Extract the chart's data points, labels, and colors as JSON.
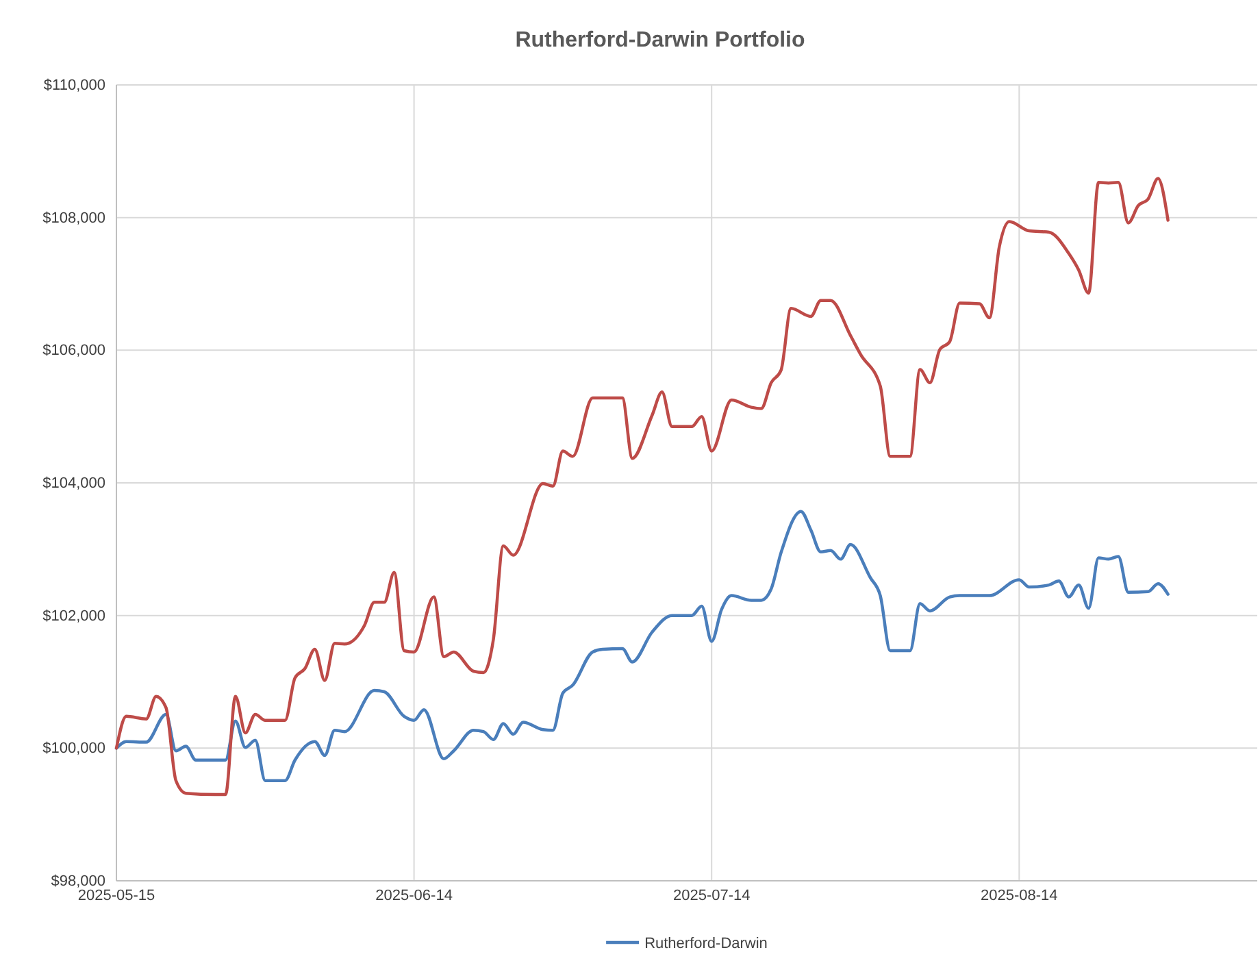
{
  "chart_data": {
    "type": "line",
    "title": "Rutherford-Darwin Portfolio",
    "xlim": [
      "2025-05-15",
      "2025-09-07"
    ],
    "xticks": [
      "2025-05-15",
      "2025-06-14",
      "2025-07-14",
      "2025-08-14"
    ],
    "ylim": [
      98000,
      110000
    ],
    "yticks": [
      {
        "value": 98000,
        "label": "$98,000"
      },
      {
        "value": 100000,
        "label": "$100,000"
      },
      {
        "value": 102000,
        "label": "$102,000"
      },
      {
        "value": 104000,
        "label": "$104,000"
      },
      {
        "value": 106000,
        "label": "$106,000"
      },
      {
        "value": 108000,
        "label": "$108,000"
      },
      {
        "value": 110000,
        "label": "$110,000"
      }
    ],
    "grid": true,
    "legend": "bottom",
    "marker": "none",
    "line_style": "solid",
    "series": [
      {
        "name": "Rutherford-Darwin",
        "color": "#4a7ebb",
        "x": [
          "2025-05-15",
          "2025-05-16",
          "2025-05-18",
          "2025-05-20",
          "2025-05-21",
          "2025-05-22",
          "2025-05-23",
          "2025-05-25",
          "2025-05-26",
          "2025-05-27",
          "2025-05-28",
          "2025-05-29",
          "2025-05-30",
          "2025-06-01",
          "2025-06-02",
          "2025-06-04",
          "2025-06-05",
          "2025-06-06",
          "2025-06-07",
          "2025-06-10",
          "2025-06-11",
          "2025-06-13",
          "2025-06-14",
          "2025-06-15",
          "2025-06-17",
          "2025-06-18",
          "2025-06-20",
          "2025-06-21",
          "2025-06-22",
          "2025-06-23",
          "2025-06-24",
          "2025-06-25",
          "2025-06-27",
          "2025-06-28",
          "2025-06-29",
          "2025-06-30",
          "2025-07-02",
          "2025-07-03",
          "2025-07-05",
          "2025-07-06",
          "2025-07-08",
          "2025-07-10",
          "2025-07-12",
          "2025-07-13",
          "2025-07-14",
          "2025-07-15",
          "2025-07-16",
          "2025-07-18",
          "2025-07-19",
          "2025-07-20",
          "2025-07-21",
          "2025-07-23",
          "2025-07-24",
          "2025-07-25",
          "2025-07-26",
          "2025-07-27",
          "2025-07-28",
          "2025-07-30",
          "2025-07-31",
          "2025-08-01",
          "2025-08-03",
          "2025-08-04",
          "2025-08-05",
          "2025-08-07",
          "2025-08-08",
          "2025-08-11",
          "2025-08-14",
          "2025-08-15",
          "2025-08-17",
          "2025-08-18",
          "2025-08-19",
          "2025-08-20",
          "2025-08-21",
          "2025-08-22",
          "2025-08-23",
          "2025-08-24",
          "2025-08-25",
          "2025-08-27",
          "2025-08-28",
          "2025-08-29"
        ],
        "values": [
          100000,
          100100,
          100090,
          100510,
          99960,
          100030,
          99820,
          99820,
          99820,
          100410,
          100010,
          100120,
          99510,
          99510,
          99820,
          100100,
          99890,
          100270,
          100250,
          100870,
          100850,
          100480,
          100420,
          100580,
          99840,
          99960,
          100270,
          100250,
          100130,
          100370,
          100210,
          100390,
          100280,
          100270,
          100830,
          100950,
          101450,
          101490,
          101500,
          101300,
          101750,
          102000,
          102000,
          102140,
          101610,
          102090,
          102300,
          102230,
          102230,
          102400,
          102950,
          103570,
          103290,
          102960,
          102980,
          102850,
          103070,
          102570,
          102300,
          101470,
          101470,
          102180,
          102070,
          102280,
          102300,
          102300,
          102540,
          102430,
          102460,
          102520,
          102280,
          102460,
          102110,
          102870,
          102850,
          102890,
          102350,
          102360,
          102480,
          102320
        ]
      },
      {
        "color": "#be4b48",
        "x": [
          "2025-05-15",
          "2025-05-16",
          "2025-05-18",
          "2025-05-19",
          "2025-05-20",
          "2025-05-21",
          "2025-05-22",
          "2025-05-25",
          "2025-05-26",
          "2025-05-27",
          "2025-05-28",
          "2025-05-29",
          "2025-05-30",
          "2025-06-01",
          "2025-06-02",
          "2025-06-03",
          "2025-06-04",
          "2025-06-05",
          "2025-06-06",
          "2025-06-07",
          "2025-06-09",
          "2025-06-10",
          "2025-06-11",
          "2025-06-12",
          "2025-06-13",
          "2025-06-14",
          "2025-06-16",
          "2025-06-17",
          "2025-06-18",
          "2025-06-20",
          "2025-06-21",
          "2025-06-22",
          "2025-06-23",
          "2025-06-24",
          "2025-06-27",
          "2025-06-28",
          "2025-06-29",
          "2025-06-30",
          "2025-07-02",
          "2025-07-05",
          "2025-07-06",
          "2025-07-08",
          "2025-07-09",
          "2025-07-10",
          "2025-07-12",
          "2025-07-13",
          "2025-07-14",
          "2025-07-16",
          "2025-07-18",
          "2025-07-19",
          "2025-07-20",
          "2025-07-21",
          "2025-07-22",
          "2025-07-24",
          "2025-07-25",
          "2025-07-26",
          "2025-07-28",
          "2025-07-29",
          "2025-07-31",
          "2025-08-01",
          "2025-08-03",
          "2025-08-04",
          "2025-08-05",
          "2025-08-06",
          "2025-08-07",
          "2025-08-08",
          "2025-08-10",
          "2025-08-11",
          "2025-08-12",
          "2025-08-13",
          "2025-08-15",
          "2025-08-17",
          "2025-08-19",
          "2025-08-20",
          "2025-08-21",
          "2025-08-22",
          "2025-08-23",
          "2025-08-24",
          "2025-08-25",
          "2025-08-26",
          "2025-08-27",
          "2025-08-28",
          "2025-08-29"
        ],
        "values": [
          100000,
          100480,
          100440,
          100780,
          100610,
          99510,
          99320,
          99300,
          99300,
          100780,
          100230,
          100510,
          100420,
          100420,
          101060,
          101200,
          101490,
          101020,
          101580,
          101570,
          101850,
          102200,
          102200,
          102650,
          101470,
          101450,
          102280,
          101380,
          101450,
          101160,
          101140,
          101640,
          103050,
          102910,
          103990,
          103950,
          104480,
          104400,
          105280,
          105280,
          104370,
          105020,
          105370,
          104850,
          104850,
          105000,
          104480,
          105250,
          105140,
          105120,
          105510,
          105700,
          106630,
          106510,
          106750,
          106750,
          106220,
          105940,
          105460,
          104400,
          104400,
          105710,
          105510,
          106010,
          106130,
          106710,
          106700,
          106490,
          107560,
          107940,
          107800,
          107780,
          107460,
          107210,
          106860,
          108530,
          108520,
          108530,
          107920,
          108180,
          108280,
          108590,
          107960
        ]
      }
    ]
  }
}
